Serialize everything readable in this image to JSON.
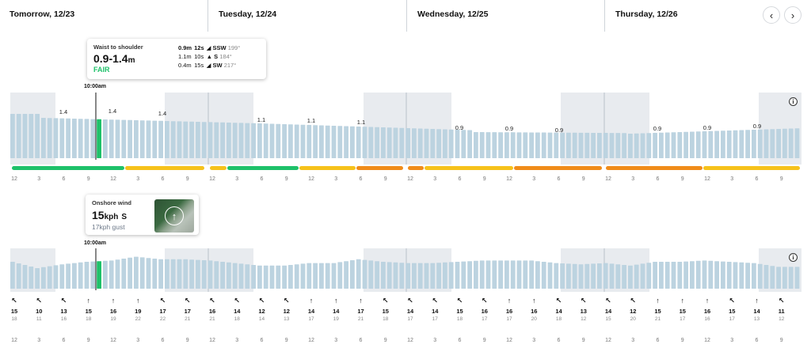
{
  "header": {
    "days": [
      "Tomorrow, 12/23",
      "Tuesday, 12/24",
      "Wednesday, 12/25",
      "Thursday, 12/26"
    ],
    "prev_icon": "chevron-left-icon",
    "next_icon": "chevron-right-icon",
    "prev_label": "‹",
    "next_label": "›"
  },
  "surf_card": {
    "title": "Waist to shoulder",
    "range": "0.9-1.4",
    "unit": "m",
    "rating": "FAIR",
    "rating_color": "#1ec16a",
    "swells": [
      {
        "height": "0.9m",
        "period": "12s",
        "dir": "SSW",
        "deg": "199°"
      },
      {
        "height": "1.1m",
        "period": "10s",
        "dir": "S",
        "deg": "184°"
      },
      {
        "height": "0.4m",
        "period": "15s",
        "dir": "SW",
        "deg": "217°"
      }
    ]
  },
  "wind_card": {
    "title": "Onshore wind",
    "speed": "15",
    "unit": "kph",
    "dir": "S",
    "gust": "17kph gust"
  },
  "selected_time": "10:00am",
  "colors": {
    "bar": "#bcd3e0",
    "selected": "#1ec16a",
    "night": "#e8ebef",
    "fair": "#1ec16a",
    "poor_fair": "#f6c21b",
    "poor": "#f08c1a"
  },
  "surf_peaks": [
    "1.4",
    "1.4",
    "1.4",
    "1.1",
    "1.1",
    "1.1",
    "0.9",
    "0.9",
    "0.9",
    "0.9",
    "0.9",
    "0.9"
  ],
  "hour_labels": [
    "12",
    "3",
    "6",
    "9",
    "12",
    "3",
    "6",
    "9",
    "12",
    "3",
    "6",
    "9",
    "12",
    "3",
    "6",
    "9",
    "12",
    "3",
    "6",
    "9",
    "12",
    "3",
    "6",
    "9",
    "12",
    "3",
    "6",
    "9",
    "12",
    "3",
    "6",
    "9"
  ],
  "wind_row": {
    "arrows": [
      "↖",
      "↖",
      "↖",
      "↑",
      "↑",
      "↑",
      "↖",
      "↖",
      "↖",
      "↖",
      "↖",
      "↖",
      "↑",
      "↑",
      "↑",
      "↖",
      "↖",
      "↖",
      "↖",
      "↖",
      "↑",
      "↑",
      "↖",
      "↖",
      "↖",
      "↖",
      "↑",
      "↑",
      "↑",
      "↖",
      "↑",
      "↖"
    ],
    "speeds": [
      "15",
      "10",
      "13",
      "15",
      "16",
      "19",
      "17",
      "17",
      "16",
      "14",
      "12",
      "12",
      "14",
      "14",
      "17",
      "15",
      "14",
      "14",
      "15",
      "16",
      "16",
      "16",
      "14",
      "13",
      "14",
      "12",
      "15",
      "15",
      "16",
      "15",
      "14",
      "11"
    ],
    "gusts": [
      "18",
      "11",
      "16",
      "18",
      "19",
      "22",
      "22",
      "21",
      "21",
      "18",
      "14",
      "13",
      "17",
      "19",
      "21",
      "18",
      "17",
      "17",
      "18",
      "17",
      "17",
      "20",
      "18",
      "12",
      "15",
      "20",
      "21",
      "17",
      "16",
      "17",
      "13",
      "12"
    ]
  },
  "info_label": "i"
}
